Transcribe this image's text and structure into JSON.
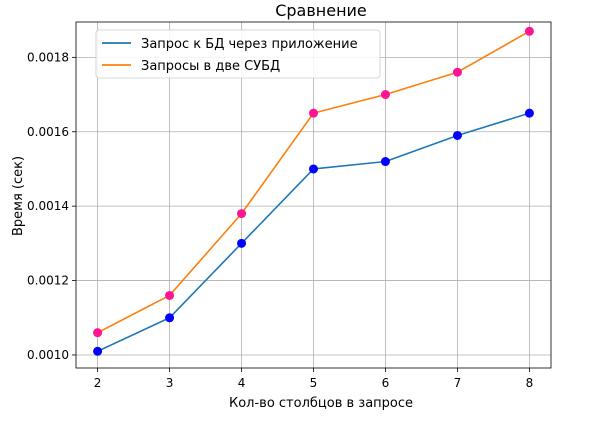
{
  "chart_data": {
    "type": "line",
    "title": "Сравнение",
    "xlabel": "Кол-во столбцов в запросе",
    "ylabel": "Время (сек)",
    "x": [
      2,
      3,
      4,
      5,
      6,
      7,
      8
    ],
    "xlim": [
      1.7,
      8.3
    ],
    "ylim": [
      0.000965,
      0.001895
    ],
    "xticks": [
      "2",
      "3",
      "4",
      "5",
      "6",
      "7",
      "8"
    ],
    "yticks": [
      {
        "value": 0.001,
        "label": "0.0010"
      },
      {
        "value": 0.0012,
        "label": "0.0012"
      },
      {
        "value": 0.0014,
        "label": "0.0014"
      },
      {
        "value": 0.0016,
        "label": "0.0016"
      },
      {
        "value": 0.0018,
        "label": "0.0018"
      }
    ],
    "grid": true,
    "legend_position": "top-left",
    "series": [
      {
        "name": "Запрос к БД через приложение",
        "values": [
          0.00101,
          0.0011,
          0.0013,
          0.0015,
          0.00152,
          0.00159,
          0.00165
        ],
        "line_color": "#1f77b4",
        "marker_color": "#0000ff"
      },
      {
        "name": "Запросы в две СУБД",
        "values": [
          0.00106,
          0.00116,
          0.00138,
          0.00165,
          0.0017,
          0.00176,
          0.00187
        ],
        "line_color": "#ff7f0e",
        "marker_color": "#ff1493"
      }
    ]
  }
}
